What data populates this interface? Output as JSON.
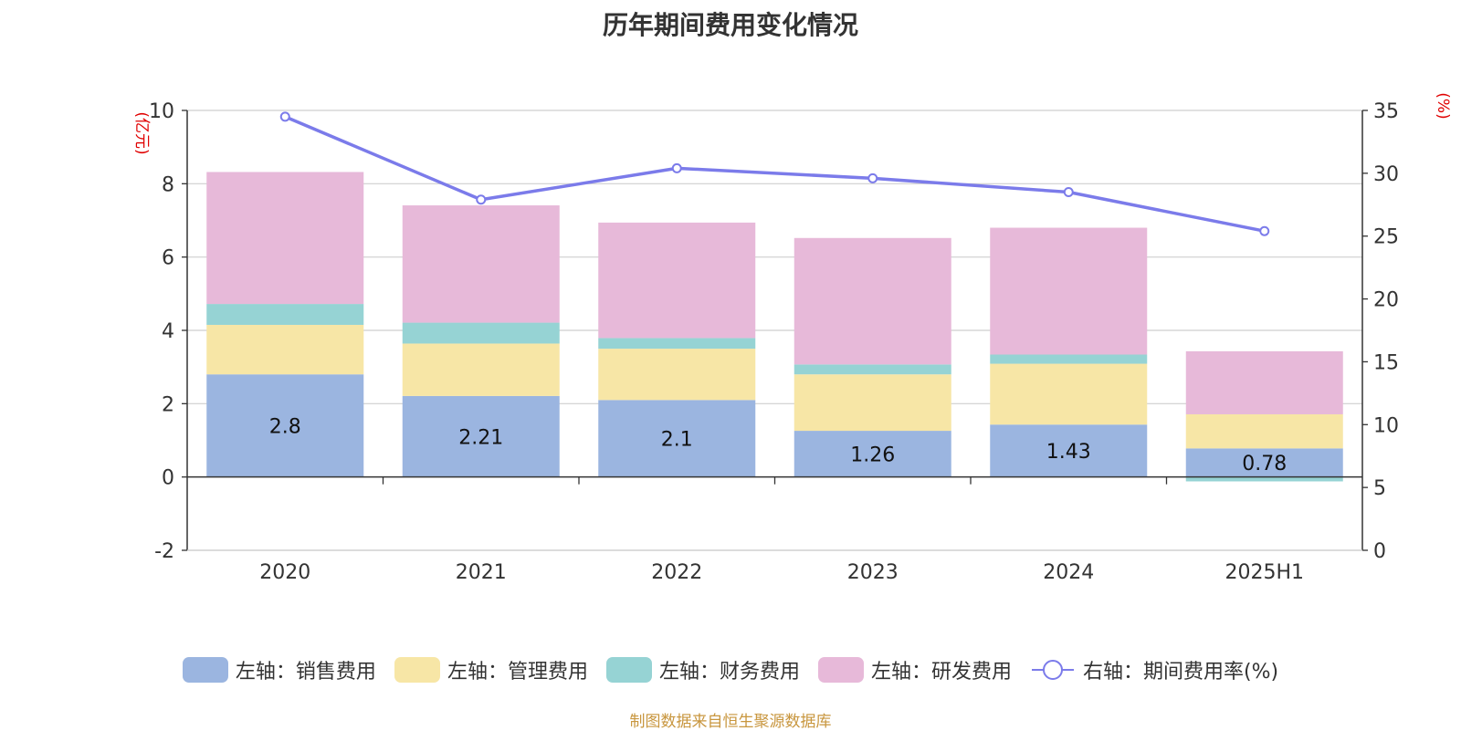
{
  "colors": {
    "sales": "#9bb5e0",
    "mgmt": "#f7e6a6",
    "finance": "#96d3d4",
    "rnd": "#e7b9d9",
    "rate_line": "#7b7bea",
    "axis_title": "#e00000",
    "source": "#c8963e"
  },
  "source_note": "制图数据来自恒生聚源数据库",
  "chart_data": {
    "type": "bar",
    "stacked": true,
    "title": "历年期间费用变化情况",
    "categories": [
      "2020",
      "2021",
      "2022",
      "2023",
      "2024",
      "2025H1"
    ],
    "left_axis": {
      "label": "(亿元)",
      "ylim": [
        -2,
        10
      ],
      "ticks": [
        -2,
        0,
        2,
        4,
        6,
        8,
        10
      ]
    },
    "right_axis": {
      "label": "(%)",
      "ylim": [
        0,
        35
      ],
      "ticks": [
        0,
        5,
        10,
        15,
        20,
        25,
        30,
        35
      ]
    },
    "grid": true,
    "legend_position": "bottom",
    "series": [
      {
        "key": "sales",
        "name": "左轴：销售费用",
        "axis": "left",
        "type": "bar",
        "color_key": "sales",
        "values": [
          2.8,
          2.21,
          2.1,
          1.26,
          1.43,
          0.78
        ],
        "data_labels": [
          "2.8",
          "2.21",
          "2.1",
          "1.26",
          "1.43",
          "0.78"
        ]
      },
      {
        "key": "mgmt",
        "name": "左轴：管理费用",
        "axis": "left",
        "type": "bar",
        "color_key": "mgmt",
        "values": [
          1.35,
          1.43,
          1.4,
          1.54,
          1.66,
          0.93
        ]
      },
      {
        "key": "finance",
        "name": "左轴：财务费用",
        "axis": "left",
        "type": "bar",
        "color_key": "finance",
        "values": [
          0.57,
          0.57,
          0.29,
          0.27,
          0.25,
          -0.12
        ]
      },
      {
        "key": "rnd",
        "name": "左轴：研发费用",
        "axis": "left",
        "type": "bar",
        "color_key": "rnd",
        "values": [
          3.6,
          3.2,
          3.15,
          3.45,
          3.46,
          1.72
        ]
      },
      {
        "key": "rate",
        "name": "右轴：期间费用率(%)",
        "axis": "right",
        "type": "line",
        "color_key": "rate_line",
        "values": [
          34.5,
          27.9,
          30.4,
          29.6,
          28.5,
          25.4
        ]
      }
    ]
  }
}
